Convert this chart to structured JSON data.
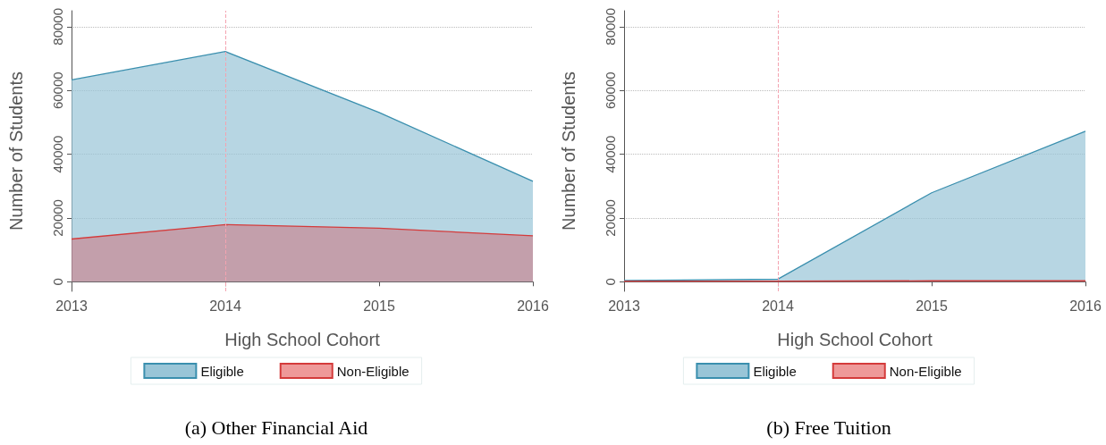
{
  "chart_data": [
    {
      "type": "area",
      "title": "(a) Other Financial Aid",
      "xlabel": "High School Cohort",
      "ylabel": "Number of Students",
      "x": [
        2013,
        2014,
        2015,
        2016
      ],
      "series": [
        {
          "name": "Eligible",
          "color": "#3a8fae",
          "values": [
            63300,
            72200,
            53100,
            31500
          ]
        },
        {
          "name": "Non-Eligible",
          "color": "#d43b3b",
          "values": [
            13400,
            17900,
            16800,
            14400
          ]
        }
      ],
      "xlim": [
        2013,
        2016
      ],
      "xticks": [
        2013,
        2014,
        2015,
        2016
      ],
      "ylim": [
        -3000,
        85000
      ],
      "yticks": [
        0,
        20000,
        40000,
        60000,
        80000
      ],
      "ref_lines": [
        {
          "axis": "x",
          "value": 2014,
          "color": "#f4a3b0",
          "line_style": "dashed"
        }
      ],
      "grid": "y",
      "legend": "bottom"
    },
    {
      "type": "area",
      "title": "(b) Free Tuition",
      "xlabel": "High School Cohort",
      "ylabel": "Number of Students",
      "x": [
        2013,
        2014,
        2015,
        2016
      ],
      "series": [
        {
          "name": "Eligible",
          "color": "#3a8fae",
          "values": [
            400,
            800,
            27900,
            47200
          ]
        },
        {
          "name": "Non-Eligible",
          "color": "#d43b3b",
          "values": [
            200,
            200,
            300,
            300
          ]
        }
      ],
      "xlim": [
        2013,
        2016
      ],
      "xticks": [
        2013,
        2014,
        2015,
        2016
      ],
      "ylim": [
        -3000,
        85000
      ],
      "yticks": [
        0,
        20000,
        40000,
        60000,
        80000
      ],
      "ref_lines": [
        {
          "axis": "x",
          "value": 2014,
          "color": "#f4a3b0",
          "line_style": "dashed"
        }
      ],
      "grid": "y",
      "legend": "bottom"
    }
  ]
}
